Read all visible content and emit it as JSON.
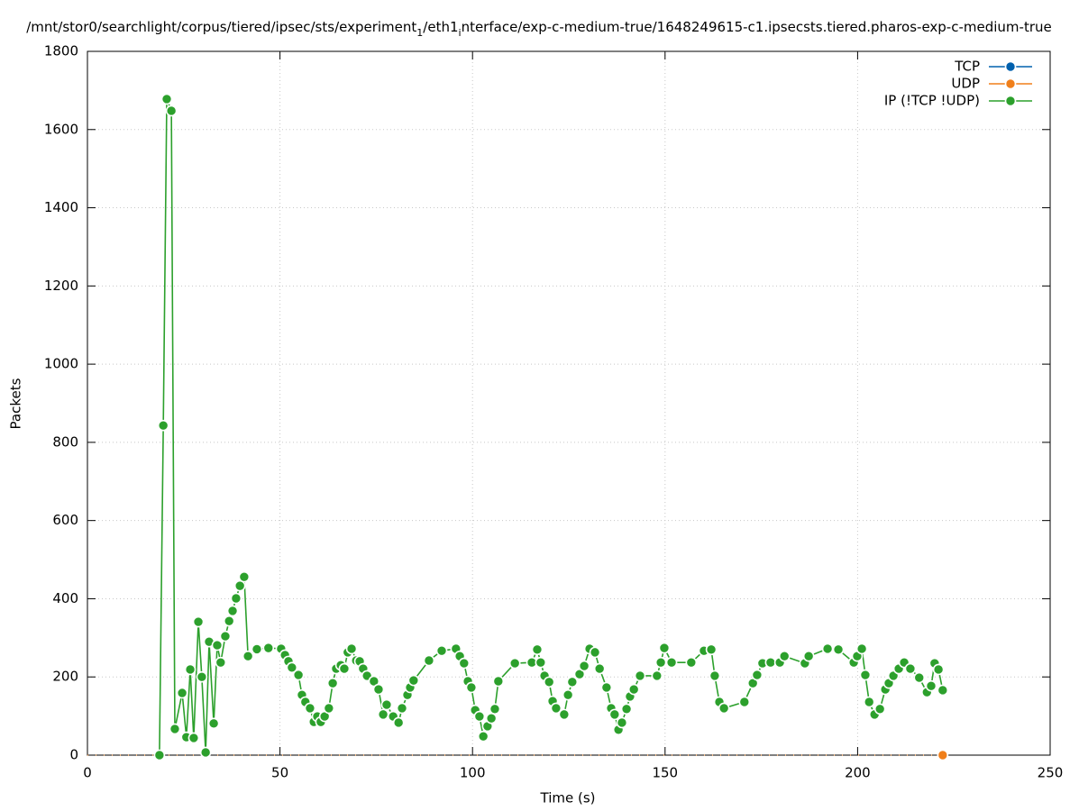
{
  "chart_data": {
    "type": "line",
    "title_parts": [
      {
        "text": "/mnt/stor0/searchlight/corpus/tiered/ipsec/sts/experiment",
        "sub": false
      },
      {
        "text": "1",
        "sub": true
      },
      {
        "text": "/eth1",
        "sub": false
      },
      {
        "text": "i",
        "sub": true
      },
      {
        "text": "nterface/exp-c-medium-true/1648249615-c1.ipsecsts.tiered.pharos-exp-c-medium-true",
        "sub": false
      }
    ],
    "xlabel": "Time (s)",
    "ylabel": "Packets",
    "xlim": [
      0,
      250
    ],
    "ylim": [
      0,
      1800
    ],
    "xticks": [
      0,
      50,
      100,
      150,
      200,
      250
    ],
    "yticks": [
      0,
      200,
      400,
      600,
      800,
      1000,
      1200,
      1400,
      1600,
      1800
    ],
    "grid": true,
    "legend": "top-right",
    "series": [
      {
        "name": "TCP",
        "color": "#0060ad",
        "x": [],
        "values": []
      },
      {
        "name": "UDP",
        "color": "#f07f1a",
        "x": [
          0,
          222.1
        ],
        "values": [
          0,
          0
        ]
      },
      {
        "name": "IP (!TCP  !UDP)",
        "color": "#2ca02c",
        "x": [
          18.7,
          19.7,
          20.6,
          21.8,
          22.7,
          24.6,
          25.7,
          26.7,
          27.6,
          28.8,
          29.7,
          30.7,
          31.6,
          32.8,
          33.7,
          34.6,
          35.8,
          36.8,
          37.7,
          38.6,
          39.6,
          40.7,
          41.7,
          44,
          47,
          50.3,
          51.3,
          52.2,
          53.1,
          54.8,
          55.7,
          56.6,
          57.8,
          58.8,
          59.7,
          60.6,
          61.6,
          62.7,
          63.7,
          64.6,
          65.8,
          66.7,
          67.6,
          68.6,
          69.8,
          70.7,
          71.6,
          72.6,
          74.4,
          75.6,
          76.8,
          77.7,
          79.4,
          80.8,
          81.7,
          83.1,
          83.8,
          84.7,
          88.7,
          92,
          95.7,
          96.7,
          97.8,
          98.8,
          99.7,
          100.7,
          101.8,
          102.8,
          103.9,
          104.9,
          105.8,
          106.7,
          111,
          115.4,
          116.8,
          117.7,
          118.7,
          119.9,
          120.8,
          121.7,
          123.8,
          124.8,
          125.9,
          127.8,
          129,
          130.4,
          131.8,
          133,
          134.8,
          136,
          136.9,
          137.9,
          138.8,
          140,
          140.9,
          141.9,
          143.5,
          147.9,
          148.9,
          149.8,
          151.7,
          156.8,
          160.1,
          162,
          162.9,
          164.1,
          165.3,
          170.6,
          172.8,
          173.9,
          175.3,
          177.4,
          179.8,
          181,
          186.3,
          187.3,
          192.2,
          195,
          199,
          199.9,
          201.1,
          202,
          203,
          204.4,
          205.8,
          207.2,
          208.1,
          209.3,
          210.7,
          212.1,
          213.7,
          216,
          218,
          219.1,
          220,
          221,
          222.1
        ],
        "values": [
          0,
          843,
          1678,
          1648,
          67,
          159,
          46,
          219,
          44,
          341,
          200,
          7,
          290,
          81,
          281,
          237,
          304,
          343,
          369,
          401,
          433,
          456,
          253,
          271,
          274,
          272,
          256,
          240,
          224,
          205,
          154,
          136,
          120,
          85,
          99,
          85,
          99,
          120,
          184,
          221,
          230,
          221,
          263,
          272,
          242,
          240,
          221,
          203,
          189,
          168,
          104,
          129,
          99,
          83,
          120,
          154,
          173,
          191,
          242,
          267,
          272,
          253,
          235,
          189,
          173,
          115,
          99,
          48,
          74,
          94,
          118,
          189,
          235,
          237,
          270,
          237,
          203,
          187,
          138,
          120,
          104,
          154,
          187,
          207,
          228,
          272,
          263,
          221,
          173,
          120,
          104,
          65,
          83,
          118,
          150,
          168,
          203,
          203,
          237,
          274,
          237,
          237,
          267,
          270,
          203,
          136,
          120,
          136,
          184,
          205,
          235,
          237,
          237,
          253,
          235,
          253,
          272,
          270,
          237,
          253,
          272,
          205,
          136,
          104,
          118,
          168,
          184,
          203,
          221,
          237,
          221,
          198,
          161,
          177,
          235,
          219,
          166
        ]
      }
    ]
  }
}
